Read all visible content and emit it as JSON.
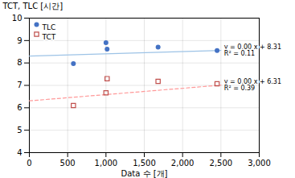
{
  "chart_data": {
    "type": "scatter",
    "xlabel": "Data 수 [개]",
    "ylabel": "TCT, TLC [시간]",
    "xlim": [
      0,
      3000
    ],
    "ylim": [
      4,
      10
    ],
    "xticks": [
      0,
      500,
      {
        "value": 1000,
        "label": "1,000"
      },
      {
        "value": 1500,
        "label": "1,500"
      },
      {
        "value": 2000,
        "label": "2,000"
      },
      {
        "value": 2500,
        "label": "2,500"
      },
      {
        "value": 3000,
        "label": "3,000"
      }
    ],
    "yticks": [
      4,
      5,
      6,
      7,
      8,
      9,
      10
    ],
    "grid": true,
    "legend": "upper left",
    "series": [
      {
        "name": "TLC",
        "type": "scatter",
        "color": "#4472C4",
        "marker": "circle",
        "x": [
          575,
          1000,
          1015,
          1680,
          2450
        ],
        "values": [
          7.97,
          8.9,
          8.62,
          8.71,
          8.55
        ]
      },
      {
        "name": "TCT",
        "type": "scatter",
        "color": "#C0504D",
        "marker": "open square",
        "x": [
          575,
          1000,
          1015,
          1680,
          2450
        ],
        "values": [
          6.1,
          6.67,
          7.3,
          7.18,
          7.07
        ]
      },
      {
        "type": "line",
        "color": "#9DC3E6",
        "line_style": "solid",
        "x": [
          0,
          2500
        ],
        "values": [
          8.31,
          8.56
        ],
        "annotations": [
          "y = 0.00 x + 8.31",
          "R² = 0.11"
        ]
      },
      {
        "type": "line",
        "color": "#FF9999",
        "line_style": "dashed",
        "x": [
          0,
          2500
        ],
        "values": [
          6.31,
          7.01
        ],
        "annotations": [
          "y = 0.00 x + 6.31",
          "R² = 0.39"
        ]
      }
    ]
  }
}
